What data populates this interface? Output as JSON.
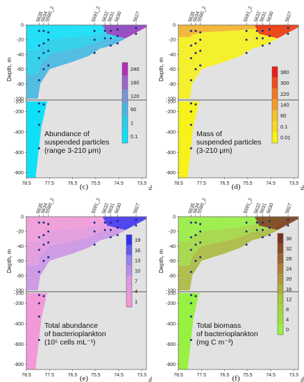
{
  "chart_data": [
    {
      "type": "heatmap",
      "panel_label": "(c)",
      "x_ticks": [
        "78.5",
        "77.5",
        "76.5",
        "75.5",
        "74.5",
        "73.5"
      ],
      "x_unit": "°N",
      "ylabel": "Depth, m",
      "y_ticks_upper": [
        "0",
        "-20",
        "-40",
        "-60",
        "-80",
        "-100"
      ],
      "y_ticks_lower": [
        "-100",
        "-200",
        "-400",
        "-600",
        "-800"
      ],
      "stations": [
        "5635",
        "5634",
        "5590_2",
        "5591_2",
        "5632",
        "5631",
        "5630",
        "5627"
      ],
      "caption": [
        "Abundance of",
        "suspended particles",
        "(range 3-210 μm)"
      ],
      "colorbar_ticks": [
        "240",
        "180",
        "120",
        "60",
        "1",
        "0.1"
      ],
      "colors": [
        "#0fe0f8",
        "#33c4e6",
        "#8a88d6",
        "#b030b8"
      ]
    },
    {
      "type": "heatmap",
      "panel_label": "(d)",
      "x_ticks": [
        "78.5",
        "77.5",
        "76.5",
        "75.5",
        "74.5",
        "73.5"
      ],
      "x_unit": "°N",
      "ylabel": "Depth, m",
      "y_ticks_upper": [
        "0",
        "-20",
        "-40",
        "-60",
        "-80",
        "-100"
      ],
      "y_ticks_lower": [
        "-100",
        "-200",
        "-400",
        "-600",
        "-800"
      ],
      "stations": [
        "5635",
        "5634",
        "5590_2",
        "5591_2",
        "5632",
        "5631",
        "5630",
        "5627"
      ],
      "caption": [
        "Mass of",
        "suspended particles",
        "(3-210 μm)"
      ],
      "colorbar_ticks": [
        "380",
        "300",
        "220",
        "140",
        "60",
        "0.1",
        "0.01"
      ],
      "colors": [
        "#f6f21a",
        "#f4c02c",
        "#f27a22",
        "#e82018"
      ]
    },
    {
      "type": "heatmap",
      "panel_label": "(e)",
      "x_ticks": [
        "78.5",
        "77.5",
        "76.5",
        "75.5",
        "74.5",
        "73.5"
      ],
      "x_unit": "°N",
      "ylabel": "Depth, m",
      "y_ticks_upper": [
        "0",
        "-20",
        "-40",
        "-60",
        "-80",
        "-100"
      ],
      "y_ticks_lower": [
        "-100",
        "-200",
        "-400",
        "-600",
        "-800"
      ],
      "stations": [
        "5635",
        "5634",
        "5590_2",
        "5591_2",
        "5632",
        "5631",
        "5630",
        "5627"
      ],
      "caption": [
        "Total abundance",
        "of bacterioplankton",
        "(10⁵ cells mL⁻¹)"
      ],
      "colorbar_ticks": [
        "19",
        "16",
        "13",
        "10",
        "7",
        "4",
        "1"
      ],
      "colors": [
        "#f29ad8",
        "#d998e4",
        "#9a84f0",
        "#3030f0"
      ]
    },
    {
      "type": "heatmap",
      "panel_label": "(f)",
      "x_ticks": [
        "78.5",
        "77.5",
        "76.5",
        "75.5",
        "74.5",
        "73.5"
      ],
      "x_unit": "°N",
      "ylabel": "Depth, m",
      "y_ticks_upper": [
        "0",
        "-20",
        "-40",
        "-60",
        "-80",
        "-100"
      ],
      "y_ticks_lower": [
        "-100",
        "-200",
        "-400",
        "-600",
        "-800"
      ],
      "stations": [
        "5635",
        "5634",
        "5590_2",
        "5591_2",
        "5632",
        "5631",
        "5630",
        "5627"
      ],
      "caption": [
        "Total biomass",
        "of bacterioplankton",
        "(mg C m⁻³)"
      ],
      "colorbar_ticks": [
        "36",
        "32",
        "28",
        "24",
        "20",
        "16",
        "12",
        "8",
        "4",
        "0"
      ],
      "colors": [
        "#98f040",
        "#a8c840",
        "#b08038",
        "#7a3020"
      ]
    }
  ]
}
